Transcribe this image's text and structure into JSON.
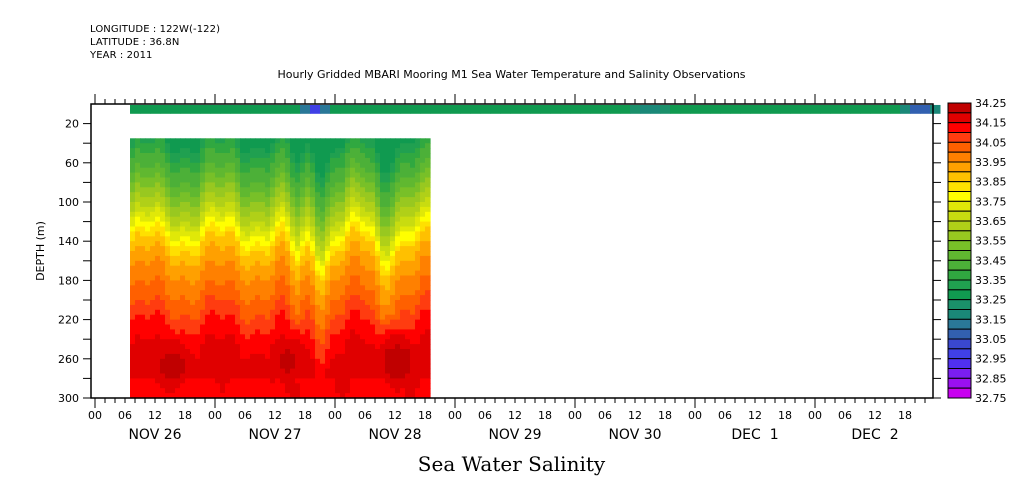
{
  "header": {
    "longitude": "LONGITUDE : 122W(-122)",
    "latitude": "LATITUDE : 36.8N",
    "year": "YEAR : 2011"
  },
  "chart_data": {
    "type": "heatmap",
    "title": "Hourly Gridded MBARI Mooring M1 Sea Water Temperature and Salinity Observations",
    "xlabel": "Sea Water Salinity",
    "ylabel": "DEPTH (m)",
    "x_axis": {
      "unit": "hours since 2011-11-26 00:00",
      "range": [
        0,
        167.6
      ],
      "hour_tick_labels": [
        "00",
        "06",
        "12",
        "18",
        "00",
        "06",
        "12",
        "18",
        "00",
        "06",
        "12",
        "18",
        "00",
        "06",
        "12",
        "18",
        "00",
        "06",
        "12",
        "18",
        "00",
        "06",
        "12",
        "18",
        "00",
        "06",
        "12",
        "18"
      ],
      "day_labels": [
        "NOV 26",
        "NOV 27",
        "NOV 28",
        "NOV 29",
        "NOV 30",
        "DEC  1",
        "DEC  2"
      ]
    },
    "y_axis": {
      "range": [
        300,
        0
      ],
      "inverted": true,
      "tick_labels": [
        "20",
        "60",
        "100",
        "140",
        "180",
        "220",
        "260",
        "300"
      ],
      "tick_values": [
        20,
        60,
        100,
        140,
        180,
        220,
        260,
        300
      ]
    },
    "colorbar": {
      "min": 32.75,
      "max": 34.25,
      "step": 0.05,
      "labels": [
        "34.25",
        "34.15",
        "34.05",
        "33.95",
        "33.85",
        "33.75",
        "33.65",
        "33.55",
        "33.45",
        "33.35",
        "33.25",
        "33.15",
        "33.05",
        "32.95",
        "32.85",
        "32.75"
      ],
      "colors_low_to_high": [
        "#c800f0",
        "#9a10f0",
        "#7a1ef0",
        "#5030f0",
        "#4040e6",
        "#3a48d0",
        "#3260b0",
        "#2a7898",
        "#1a8878",
        "#1a906a",
        "#109a50",
        "#20a050",
        "#30a840",
        "#4cb038",
        "#60b830",
        "#78c028",
        "#98c820",
        "#b0d018",
        "#c8dc10",
        "#e0e808",
        "#ffff00",
        "#ffe000",
        "#ffc000",
        "#ffa000",
        "#ff8000",
        "#ff6000",
        "#ff3c10",
        "#ff0000",
        "#e00000",
        "#c00000",
        "#960000"
      ]
    },
    "surface_band": {
      "depth_range": [
        2,
        10
      ],
      "time_range": [
        7,
        167.6
      ],
      "typical_value": 33.25,
      "low_patches": [
        {
          "time": 43,
          "value": 32.95
        },
        {
          "time": 164,
          "value": 33.0
        },
        {
          "time": 110,
          "value": 33.15
        }
      ]
    },
    "profile": {
      "time_range": [
        7,
        67
      ],
      "depth_range": [
        35,
        300
      ],
      "depths": [
        35,
        50,
        70,
        90,
        110,
        125,
        140,
        160,
        180,
        200,
        215,
        230,
        245,
        260,
        280,
        300
      ],
      "mean_values": [
        33.3,
        33.38,
        33.45,
        33.55,
        33.65,
        33.75,
        33.85,
        33.93,
        33.98,
        34.03,
        34.08,
        34.12,
        34.15,
        34.17,
        34.17,
        34.15
      ],
      "high_cores": [
        {
          "time": 15,
          "depth": 265,
          "value": 34.22
        },
        {
          "time": 38,
          "depth": 260,
          "value": 34.21
        },
        {
          "time": 60,
          "depth": 262,
          "value": 34.23
        }
      ],
      "dip_events": [
        {
          "time": 40,
          "amplitude": 30
        },
        {
          "time": 45,
          "amplitude": 25
        },
        {
          "time": 57,
          "amplitude": 28
        }
      ]
    }
  }
}
